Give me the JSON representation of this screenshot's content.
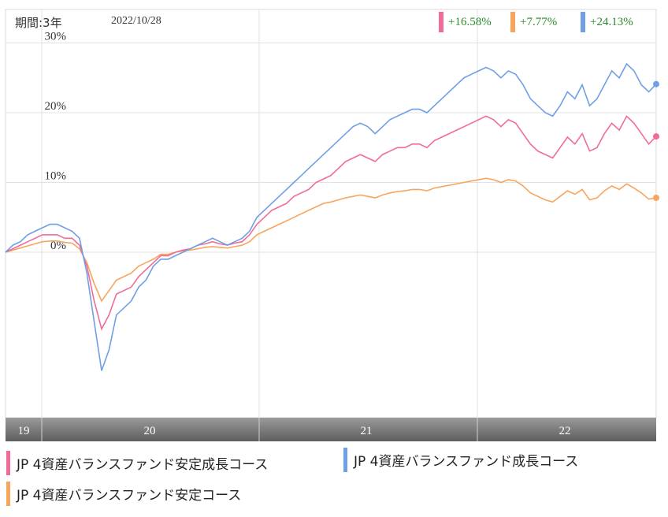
{
  "header": {
    "period_label": "期間:3年",
    "date": "2022/10/28",
    "returns": [
      {
        "value": "+16.58%",
        "color": "#f06a9a"
      },
      {
        "value": "+7.77%",
        "color": "#f7a55c"
      },
      {
        "value": "+24.13%",
        "color": "#6f9fe6"
      }
    ]
  },
  "legend": [
    {
      "label": "JP 4資産バランスファンド安定成長コース",
      "color": "#f06a9a"
    },
    {
      "label": "JP 4資産バランスファンド成長コース",
      "color": "#6f9fe6"
    },
    {
      "label": "JP 4資産バランスファンド安定コース",
      "color": "#f7a55c"
    }
  ],
  "chart_data": {
    "type": "line",
    "x_ticks": [
      "19",
      "20",
      "21",
      "22"
    ],
    "y_ticks": [
      "30%",
      "20%",
      "10%",
      "0%"
    ],
    "ylim": [
      -23,
      30
    ],
    "grid": true,
    "series": [
      {
        "name": "JP 4資産バランスファンド成長コース",
        "color": "#6f9fe6",
        "values": [
          0,
          1,
          1.5,
          2.5,
          3,
          3.5,
          4,
          4,
          3.5,
          3,
          2,
          -3,
          -10,
          -17,
          -14,
          -9,
          -8,
          -7,
          -5,
          -4,
          -2,
          -1,
          -1,
          -0.5,
          0,
          0.5,
          1,
          1.5,
          2,
          1.5,
          1,
          1.5,
          2,
          3,
          5,
          6,
          7,
          8,
          9,
          10,
          11,
          12,
          13,
          14,
          15,
          16,
          17,
          18,
          18.5,
          18,
          17,
          18,
          19,
          19.5,
          20,
          20.5,
          20.5,
          20,
          21,
          22,
          23,
          24,
          25,
          25.5,
          26,
          26.5,
          26,
          25,
          26,
          25.5,
          24,
          22,
          21,
          20,
          19.5,
          21,
          23,
          22,
          24,
          21,
          22,
          24,
          26,
          25,
          27,
          26,
          24,
          23,
          24.1
        ]
      },
      {
        "name": "JP 4資産バランスファンド安定成長コース",
        "color": "#f06a9a",
        "values": [
          0,
          0.5,
          1,
          1.5,
          2,
          2.5,
          2.5,
          2.5,
          2,
          2,
          1,
          -2,
          -7,
          -11,
          -9,
          -6,
          -5.5,
          -5,
          -3.5,
          -2.5,
          -1.5,
          -0.5,
          -0.5,
          0,
          0.3,
          0.5,
          1,
          1.2,
          1.5,
          1.2,
          1,
          1.3,
          1.5,
          2.5,
          4,
          5,
          6,
          6.5,
          7,
          8,
          8.5,
          9,
          10,
          10.5,
          11,
          12,
          13,
          13.5,
          14,
          13.5,
          13,
          14,
          14.5,
          15,
          15,
          15.5,
          15.5,
          15,
          16,
          16.5,
          17,
          17.5,
          18,
          18.5,
          19,
          19.5,
          19,
          18,
          19,
          18.5,
          17,
          15.5,
          14.5,
          14,
          13.5,
          15,
          16.5,
          15.5,
          17,
          14.5,
          15,
          17,
          18.5,
          17.5,
          19.5,
          18.5,
          17,
          15.5,
          16.6
        ]
      },
      {
        "name": "JP 4資産バランスファンド安定コース",
        "color": "#f7a55c",
        "values": [
          0,
          0.3,
          0.6,
          0.9,
          1.2,
          1.5,
          1.6,
          1.6,
          1.4,
          1.3,
          0.5,
          -1.5,
          -4.5,
          -7,
          -5.5,
          -4,
          -3.5,
          -3,
          -2,
          -1.5,
          -1,
          -0.3,
          -0.3,
          0,
          0.2,
          0.3,
          0.5,
          0.7,
          0.8,
          0.7,
          0.6,
          0.8,
          1,
          1.5,
          2.5,
          3,
          3.5,
          4,
          4.5,
          5,
          5.5,
          6,
          6.5,
          7,
          7.2,
          7.5,
          7.8,
          8,
          8.2,
          8,
          7.8,
          8.2,
          8.5,
          8.7,
          8.8,
          9,
          9,
          8.8,
          9.2,
          9.4,
          9.6,
          9.8,
          10,
          10.2,
          10.4,
          10.6,
          10.4,
          10,
          10.4,
          10.2,
          9.5,
          8.5,
          8,
          7.5,
          7.2,
          8,
          8.8,
          8.3,
          9,
          7.5,
          7.8,
          8.8,
          9.5,
          9,
          9.8,
          9.2,
          8.5,
          7.6,
          7.8
        ]
      }
    ]
  }
}
